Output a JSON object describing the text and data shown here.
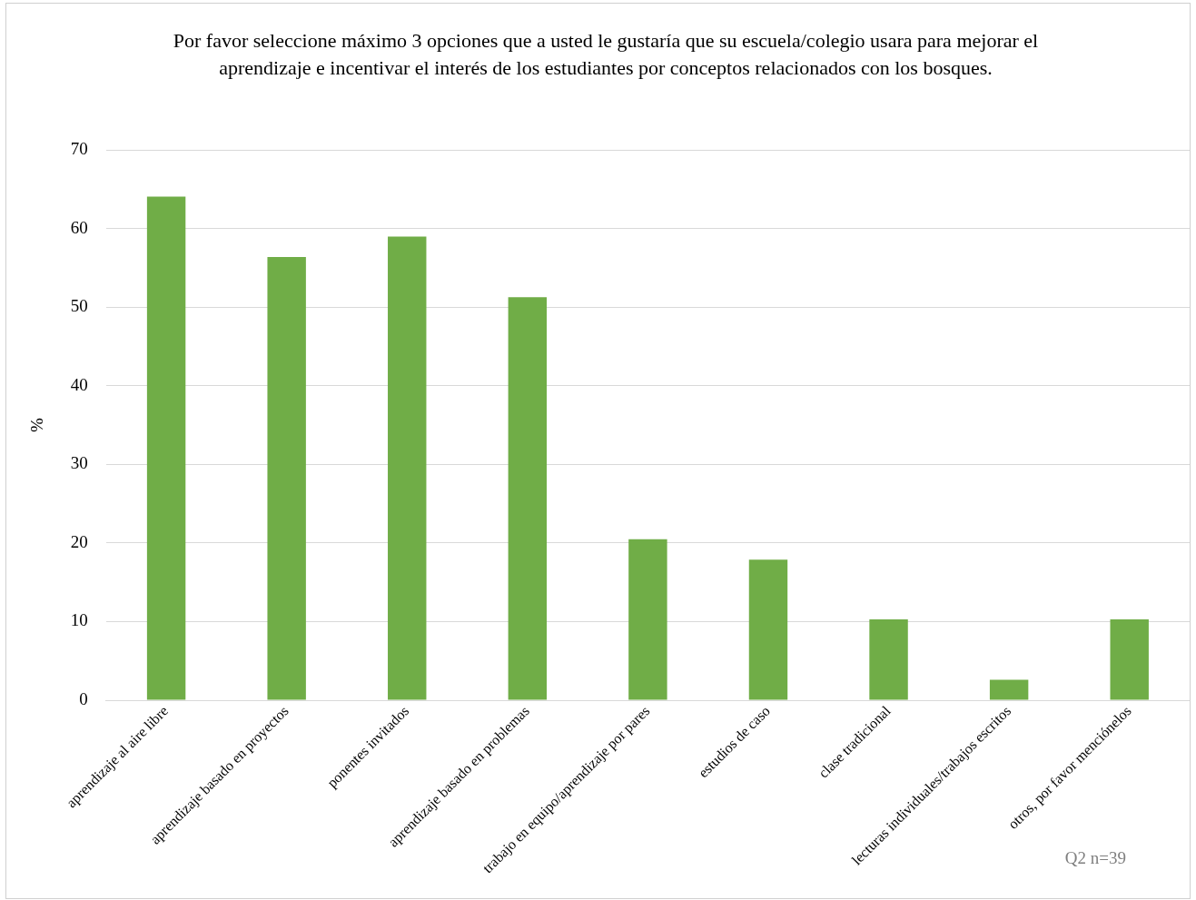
{
  "chart_data": {
    "type": "bar",
    "title": "Por favor seleccione máximo 3 opciones que a usted le gustaría que su escuela/colegio usara para mejorar el aprendizaje e incentivar el interés de los estudiantes por conceptos relacionados con los bosques.",
    "ylabel": "%",
    "categories": [
      "aprendizaje al aire libre",
      "aprendizaje basado en proyectos",
      "ponentes invitados",
      "aprendizaje basado en problemas",
      "trabajo en equipo/aprendizaje por pares",
      "estudios de caso",
      "clase tradicional",
      "lecturas individuales/trabajos escritos",
      "otros, por favor menciónelos"
    ],
    "values": [
      64.1,
      56.4,
      59.0,
      51.3,
      20.5,
      17.9,
      10.3,
      2.6,
      10.3
    ],
    "color": "#70ad47",
    "ylim": [
      0,
      70
    ],
    "yticks": [
      0,
      10,
      20,
      30,
      40,
      50,
      60,
      70
    ],
    "grid": "y",
    "annotations": [
      "Q2 n=39"
    ]
  }
}
